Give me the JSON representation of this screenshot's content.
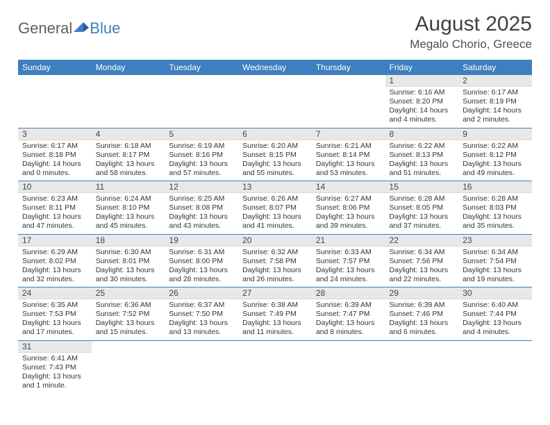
{
  "logo": {
    "text1": "General",
    "text2": "Blue"
  },
  "title": "August 2025",
  "subtitle": "Megalo Chorio, Greece",
  "colors": {
    "header_bg": "#3d7fbf",
    "header_fg": "#ffffff",
    "daynum_bg": "#e8e8e8",
    "border": "#3d7fbf",
    "text": "#333333"
  },
  "weekdays": [
    "Sunday",
    "Monday",
    "Tuesday",
    "Wednesday",
    "Thursday",
    "Friday",
    "Saturday"
  ],
  "weeks": [
    [
      null,
      null,
      null,
      null,
      null,
      {
        "n": "1",
        "sunrise": "Sunrise: 6:16 AM",
        "sunset": "Sunset: 8:20 PM",
        "daylight": "Daylight: 14 hours and 4 minutes."
      },
      {
        "n": "2",
        "sunrise": "Sunrise: 6:17 AM",
        "sunset": "Sunset: 8:19 PM",
        "daylight": "Daylight: 14 hours and 2 minutes."
      }
    ],
    [
      {
        "n": "3",
        "sunrise": "Sunrise: 6:17 AM",
        "sunset": "Sunset: 8:18 PM",
        "daylight": "Daylight: 14 hours and 0 minutes."
      },
      {
        "n": "4",
        "sunrise": "Sunrise: 6:18 AM",
        "sunset": "Sunset: 8:17 PM",
        "daylight": "Daylight: 13 hours and 58 minutes."
      },
      {
        "n": "5",
        "sunrise": "Sunrise: 6:19 AM",
        "sunset": "Sunset: 8:16 PM",
        "daylight": "Daylight: 13 hours and 57 minutes."
      },
      {
        "n": "6",
        "sunrise": "Sunrise: 6:20 AM",
        "sunset": "Sunset: 8:15 PM",
        "daylight": "Daylight: 13 hours and 55 minutes."
      },
      {
        "n": "7",
        "sunrise": "Sunrise: 6:21 AM",
        "sunset": "Sunset: 8:14 PM",
        "daylight": "Daylight: 13 hours and 53 minutes."
      },
      {
        "n": "8",
        "sunrise": "Sunrise: 6:22 AM",
        "sunset": "Sunset: 8:13 PM",
        "daylight": "Daylight: 13 hours and 51 minutes."
      },
      {
        "n": "9",
        "sunrise": "Sunrise: 6:22 AM",
        "sunset": "Sunset: 8:12 PM",
        "daylight": "Daylight: 13 hours and 49 minutes."
      }
    ],
    [
      {
        "n": "10",
        "sunrise": "Sunrise: 6:23 AM",
        "sunset": "Sunset: 8:11 PM",
        "daylight": "Daylight: 13 hours and 47 minutes."
      },
      {
        "n": "11",
        "sunrise": "Sunrise: 6:24 AM",
        "sunset": "Sunset: 8:10 PM",
        "daylight": "Daylight: 13 hours and 45 minutes."
      },
      {
        "n": "12",
        "sunrise": "Sunrise: 6:25 AM",
        "sunset": "Sunset: 8:08 PM",
        "daylight": "Daylight: 13 hours and 43 minutes."
      },
      {
        "n": "13",
        "sunrise": "Sunrise: 6:26 AM",
        "sunset": "Sunset: 8:07 PM",
        "daylight": "Daylight: 13 hours and 41 minutes."
      },
      {
        "n": "14",
        "sunrise": "Sunrise: 6:27 AM",
        "sunset": "Sunset: 8:06 PM",
        "daylight": "Daylight: 13 hours and 39 minutes."
      },
      {
        "n": "15",
        "sunrise": "Sunrise: 6:28 AM",
        "sunset": "Sunset: 8:05 PM",
        "daylight": "Daylight: 13 hours and 37 minutes."
      },
      {
        "n": "16",
        "sunrise": "Sunrise: 6:28 AM",
        "sunset": "Sunset: 8:03 PM",
        "daylight": "Daylight: 13 hours and 35 minutes."
      }
    ],
    [
      {
        "n": "17",
        "sunrise": "Sunrise: 6:29 AM",
        "sunset": "Sunset: 8:02 PM",
        "daylight": "Daylight: 13 hours and 32 minutes."
      },
      {
        "n": "18",
        "sunrise": "Sunrise: 6:30 AM",
        "sunset": "Sunset: 8:01 PM",
        "daylight": "Daylight: 13 hours and 30 minutes."
      },
      {
        "n": "19",
        "sunrise": "Sunrise: 6:31 AM",
        "sunset": "Sunset: 8:00 PM",
        "daylight": "Daylight: 13 hours and 28 minutes."
      },
      {
        "n": "20",
        "sunrise": "Sunrise: 6:32 AM",
        "sunset": "Sunset: 7:58 PM",
        "daylight": "Daylight: 13 hours and 26 minutes."
      },
      {
        "n": "21",
        "sunrise": "Sunrise: 6:33 AM",
        "sunset": "Sunset: 7:57 PM",
        "daylight": "Daylight: 13 hours and 24 minutes."
      },
      {
        "n": "22",
        "sunrise": "Sunrise: 6:34 AM",
        "sunset": "Sunset: 7:56 PM",
        "daylight": "Daylight: 13 hours and 22 minutes."
      },
      {
        "n": "23",
        "sunrise": "Sunrise: 6:34 AM",
        "sunset": "Sunset: 7:54 PM",
        "daylight": "Daylight: 13 hours and 19 minutes."
      }
    ],
    [
      {
        "n": "24",
        "sunrise": "Sunrise: 6:35 AM",
        "sunset": "Sunset: 7:53 PM",
        "daylight": "Daylight: 13 hours and 17 minutes."
      },
      {
        "n": "25",
        "sunrise": "Sunrise: 6:36 AM",
        "sunset": "Sunset: 7:52 PM",
        "daylight": "Daylight: 13 hours and 15 minutes."
      },
      {
        "n": "26",
        "sunrise": "Sunrise: 6:37 AM",
        "sunset": "Sunset: 7:50 PM",
        "daylight": "Daylight: 13 hours and 13 minutes."
      },
      {
        "n": "27",
        "sunrise": "Sunrise: 6:38 AM",
        "sunset": "Sunset: 7:49 PM",
        "daylight": "Daylight: 13 hours and 11 minutes."
      },
      {
        "n": "28",
        "sunrise": "Sunrise: 6:39 AM",
        "sunset": "Sunset: 7:47 PM",
        "daylight": "Daylight: 13 hours and 8 minutes."
      },
      {
        "n": "29",
        "sunrise": "Sunrise: 6:39 AM",
        "sunset": "Sunset: 7:46 PM",
        "daylight": "Daylight: 13 hours and 6 minutes."
      },
      {
        "n": "30",
        "sunrise": "Sunrise: 6:40 AM",
        "sunset": "Sunset: 7:44 PM",
        "daylight": "Daylight: 13 hours and 4 minutes."
      }
    ],
    [
      {
        "n": "31",
        "sunrise": "Sunrise: 6:41 AM",
        "sunset": "Sunset: 7:43 PM",
        "daylight": "Daylight: 13 hours and 1 minute."
      },
      null,
      null,
      null,
      null,
      null,
      null
    ]
  ]
}
